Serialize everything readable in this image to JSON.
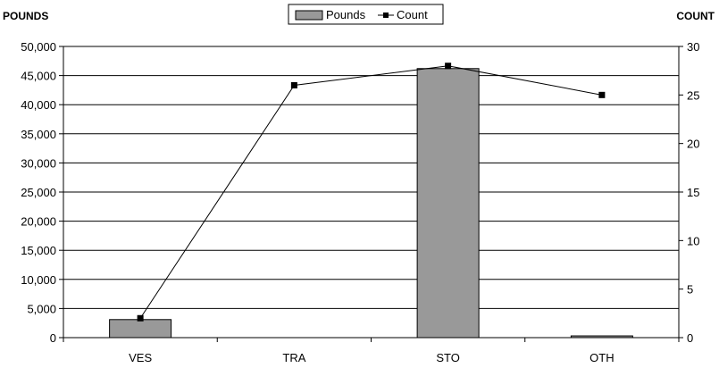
{
  "chart_data": {
    "type": "bar",
    "title": "",
    "categories": [
      "VES",
      "TRA",
      "STO",
      "OTH"
    ],
    "series": [
      {
        "name": "Pounds",
        "type": "bar",
        "axis": "left",
        "color": "#999999",
        "values": [
          3100,
          0,
          46200,
          300
        ]
      },
      {
        "name": "Count",
        "type": "line",
        "axis": "right",
        "color": "#000000",
        "marker": "square",
        "values": [
          2,
          26,
          28,
          25
        ]
      }
    ],
    "ylabel": "POUNDS",
    "y2label": "COUNT",
    "ylim": [
      0,
      50000
    ],
    "y2lim": [
      0,
      30
    ],
    "yticks": [
      "0",
      "5,000",
      "10,000",
      "15,000",
      "20,000",
      "25,000",
      "30,000",
      "35,000",
      "40,000",
      "45,000",
      "50,000"
    ],
    "y2ticks": [
      "0",
      "5",
      "10",
      "15",
      "20",
      "25",
      "30"
    ],
    "grid": true,
    "legend": "top-center"
  }
}
